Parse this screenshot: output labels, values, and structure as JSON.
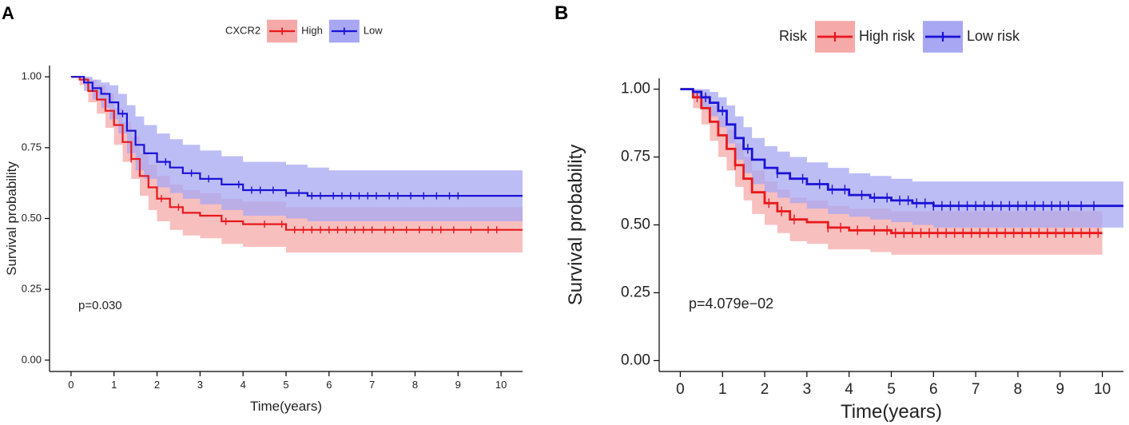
{
  "colors": {
    "high": "#e8191b",
    "high_band": "#f6a9a9",
    "low": "#1a12d6",
    "low_band": "#a7a7f3",
    "axis": "#000000"
  },
  "chart_data": [
    {
      "type": "line",
      "panel_label": "A",
      "title": "",
      "legend_title": "CXCR2",
      "legend_position": "top",
      "xlabel": "Time(years)",
      "ylabel": "Survival probability",
      "xlim": [
        -0.5,
        10.5
      ],
      "ylim": [
        -0.04,
        1.04
      ],
      "x_ticks": [
        0,
        1,
        2,
        3,
        4,
        5,
        6,
        7,
        8,
        9,
        10
      ],
      "y_ticks": [
        0,
        0.25,
        0.5,
        0.75,
        1.0
      ],
      "y_tick_labels": [
        "0.00",
        "0.25",
        "0.50",
        "0.75",
        "1.00"
      ],
      "annotation": "p=0.030",
      "series": [
        {
          "name": "High",
          "color_key": "high",
          "x": [
            0,
            0.2,
            0.4,
            0.6,
            0.8,
            1.0,
            1.2,
            1.4,
            1.6,
            1.8,
            2.0,
            2.3,
            2.6,
            3.0,
            3.5,
            4.0,
            4.5,
            5.0,
            6.0,
            8.0,
            10.5
          ],
          "y": [
            1.0,
            0.99,
            0.95,
            0.92,
            0.88,
            0.83,
            0.77,
            0.71,
            0.65,
            0.61,
            0.57,
            0.54,
            0.52,
            0.51,
            0.49,
            0.48,
            0.48,
            0.46,
            0.46,
            0.46,
            0.46
          ],
          "ci_upper": [
            1.0,
            1.0,
            0.99,
            0.97,
            0.94,
            0.89,
            0.84,
            0.79,
            0.73,
            0.69,
            0.65,
            0.62,
            0.6,
            0.59,
            0.57,
            0.56,
            0.56,
            0.54,
            0.54,
            0.54,
            0.54
          ],
          "ci_lower": [
            1.0,
            0.97,
            0.91,
            0.87,
            0.82,
            0.76,
            0.7,
            0.64,
            0.58,
            0.53,
            0.49,
            0.46,
            0.44,
            0.43,
            0.41,
            0.4,
            0.4,
            0.38,
            0.38,
            0.38,
            0.38
          ],
          "censor_x": [
            0.3,
            1.4,
            2.1,
            2.5,
            3.6,
            4.5,
            4.9,
            5.2,
            5.4,
            5.6,
            5.8,
            6.0,
            6.2,
            6.4,
            6.6,
            6.8,
            7.0,
            7.3,
            7.5,
            7.8,
            8.1,
            8.4,
            8.6,
            8.9,
            9.3,
            9.7,
            9.9
          ]
        },
        {
          "name": "Low",
          "color_key": "low",
          "x": [
            0,
            0.3,
            0.5,
            0.7,
            0.9,
            1.1,
            1.3,
            1.5,
            1.7,
            2.0,
            2.3,
            2.6,
            3.0,
            3.5,
            4.0,
            4.5,
            5.0,
            5.5,
            6.0,
            8.0,
            10.5
          ],
          "y": [
            1.0,
            0.98,
            0.96,
            0.94,
            0.91,
            0.87,
            0.81,
            0.76,
            0.73,
            0.7,
            0.68,
            0.66,
            0.64,
            0.62,
            0.6,
            0.6,
            0.59,
            0.58,
            0.58,
            0.58,
            0.58
          ],
          "ci_upper": [
            1.0,
            1.0,
            0.99,
            0.98,
            0.97,
            0.94,
            0.9,
            0.86,
            0.83,
            0.8,
            0.78,
            0.76,
            0.74,
            0.72,
            0.7,
            0.7,
            0.69,
            0.68,
            0.67,
            0.67,
            0.67
          ],
          "ci_lower": [
            1.0,
            0.95,
            0.92,
            0.89,
            0.85,
            0.8,
            0.73,
            0.67,
            0.64,
            0.61,
            0.59,
            0.57,
            0.55,
            0.53,
            0.51,
            0.51,
            0.5,
            0.49,
            0.49,
            0.49,
            0.49
          ],
          "censor_x": [
            0.5,
            1.2,
            2.2,
            2.8,
            3.2,
            3.9,
            4.2,
            4.4,
            4.7,
            5.0,
            5.3,
            5.6,
            5.8,
            6.1,
            6.3,
            6.5,
            6.7,
            6.9,
            7.1,
            7.4,
            7.6,
            7.9,
            8.2,
            8.5,
            8.8,
            9.0
          ]
        }
      ]
    },
    {
      "type": "line",
      "panel_label": "B",
      "title": "",
      "legend_title": "Risk",
      "legend_position": "top",
      "xlabel": "Time(years)",
      "ylabel": "Survival probability",
      "xlim": [
        -0.5,
        10.5
      ],
      "ylim": [
        -0.04,
        1.04
      ],
      "x_ticks": [
        0,
        1,
        2,
        3,
        4,
        5,
        6,
        7,
        8,
        9,
        10
      ],
      "y_ticks": [
        0,
        0.25,
        0.5,
        0.75,
        1.0
      ],
      "y_tick_labels": [
        "0.00",
        "0.25",
        "0.50",
        "0.75",
        "1.00"
      ],
      "annotation": "p=4.079e−02",
      "series": [
        {
          "name": "High risk",
          "color_key": "high",
          "x": [
            0,
            0.3,
            0.5,
            0.7,
            0.9,
            1.1,
            1.3,
            1.5,
            1.7,
            2.0,
            2.3,
            2.6,
            3.0,
            3.5,
            4.0,
            4.5,
            5.0,
            6.0,
            8.0,
            10.0
          ],
          "y": [
            1.0,
            0.97,
            0.93,
            0.88,
            0.83,
            0.78,
            0.72,
            0.67,
            0.62,
            0.58,
            0.55,
            0.52,
            0.51,
            0.49,
            0.48,
            0.48,
            0.47,
            0.47,
            0.47,
            0.47
          ],
          "ci_upper": [
            1.0,
            1.0,
            0.98,
            0.94,
            0.9,
            0.85,
            0.8,
            0.75,
            0.7,
            0.66,
            0.63,
            0.6,
            0.59,
            0.57,
            0.56,
            0.56,
            0.55,
            0.55,
            0.55,
            0.55
          ],
          "ci_lower": [
            1.0,
            0.93,
            0.87,
            0.81,
            0.75,
            0.7,
            0.64,
            0.59,
            0.54,
            0.5,
            0.47,
            0.44,
            0.43,
            0.41,
            0.41,
            0.4,
            0.39,
            0.39,
            0.39,
            0.39
          ],
          "censor_x": [
            0.4,
            1.3,
            2.1,
            2.4,
            2.7,
            3.5,
            3.8,
            4.2,
            4.6,
            4.9,
            5.1,
            5.3,
            5.5,
            5.7,
            5.9,
            6.1,
            6.3,
            6.5,
            6.7,
            6.9,
            7.1,
            7.3,
            7.5,
            7.7,
            7.9,
            8.1,
            8.3,
            8.5,
            8.7,
            8.9,
            9.1,
            9.3,
            9.5,
            9.7,
            9.9
          ]
        },
        {
          "name": "Low risk",
          "color_key": "low",
          "x": [
            0,
            0.3,
            0.5,
            0.7,
            0.9,
            1.1,
            1.3,
            1.5,
            1.7,
            2.0,
            2.3,
            2.6,
            3.0,
            3.5,
            4.0,
            4.5,
            5.0,
            5.5,
            6.0,
            8.0,
            10.5
          ],
          "y": [
            1.0,
            0.99,
            0.97,
            0.95,
            0.92,
            0.87,
            0.82,
            0.78,
            0.74,
            0.71,
            0.69,
            0.67,
            0.65,
            0.63,
            0.61,
            0.6,
            0.59,
            0.58,
            0.57,
            0.57,
            0.57
          ],
          "ci_upper": [
            1.0,
            1.0,
            1.0,
            0.99,
            0.97,
            0.94,
            0.9,
            0.86,
            0.82,
            0.79,
            0.77,
            0.75,
            0.73,
            0.71,
            0.69,
            0.68,
            0.67,
            0.66,
            0.66,
            0.66,
            0.66
          ],
          "ci_lower": [
            1.0,
            0.97,
            0.93,
            0.9,
            0.86,
            0.8,
            0.74,
            0.69,
            0.65,
            0.62,
            0.6,
            0.58,
            0.56,
            0.54,
            0.53,
            0.52,
            0.51,
            0.5,
            0.49,
            0.49,
            0.49
          ],
          "censor_x": [
            0.6,
            1.0,
            1.6,
            2.3,
            2.9,
            3.3,
            3.6,
            3.9,
            4.3,
            4.6,
            4.9,
            5.2,
            5.4,
            5.6,
            5.8,
            6.0,
            6.2,
            6.4,
            6.6,
            6.8,
            7.0,
            7.2,
            7.4,
            7.6,
            7.8,
            8.0,
            8.2,
            8.4,
            8.6,
            8.8,
            9.0,
            9.2,
            9.5,
            9.8
          ]
        }
      ]
    }
  ]
}
